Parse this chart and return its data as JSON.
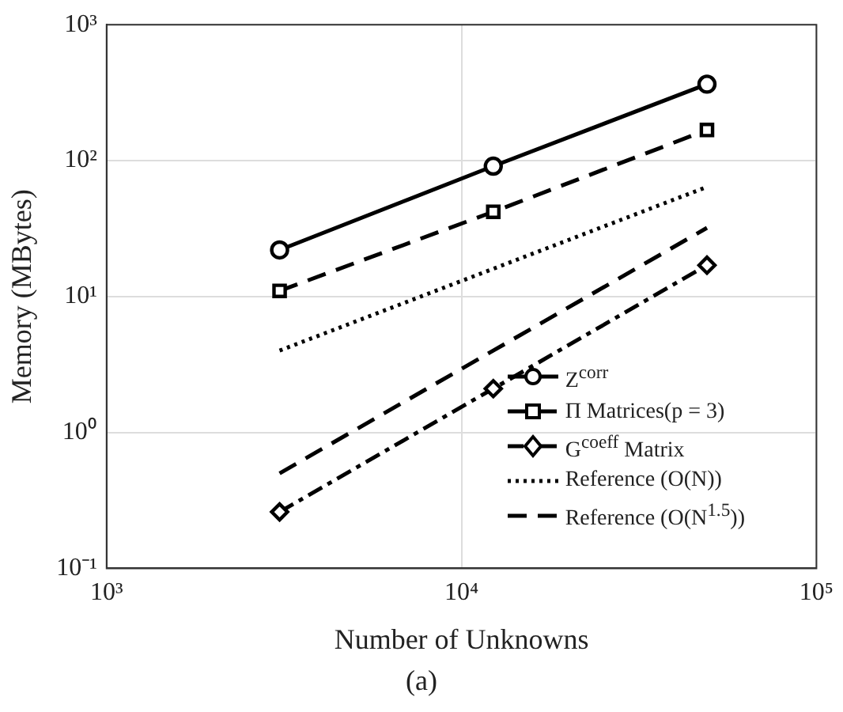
{
  "chart_data": {
    "type": "line",
    "xlabel": "Number of Unknowns",
    "ylabel": "Memory (MBytes)",
    "annotations": [
      "(a)"
    ],
    "x": [
      3072,
      12288,
      49152
    ],
    "series": [
      {
        "name": "Z$^{corr}$",
        "color": "#000000",
        "values": [
          22,
          91,
          365
        ],
        "marker": "circle",
        "line_style": "solid"
      },
      {
        "name": "Π Matrices(p = 3)",
        "color": "#000000",
        "values": [
          11,
          42,
          168
        ],
        "marker": "square",
        "line_style": "dashed"
      },
      {
        "name": "G$^{coeff}$ Matrix",
        "color": "#000000",
        "values": [
          0.26,
          2.1,
          17
        ],
        "marker": "diamond",
        "line_style": "dashdot"
      },
      {
        "name": "Reference (O(N))",
        "color": "#000000",
        "values": [
          4,
          16,
          64
        ],
        "marker": "none",
        "line_style": "dotted"
      },
      {
        "name": "Reference (O(N$^{1.5}$))",
        "color": "#000000",
        "values": [
          0.5,
          4,
          32
        ],
        "marker": "none",
        "line_style": "dashed"
      }
    ],
    "log": "xy",
    "xlim": [
      1000,
      100000
    ],
    "ylim": [
      0.1,
      1000
    ],
    "xticks": [
      {
        "value": 1000,
        "label": "10³"
      },
      {
        "value": 10000,
        "label": "10⁴"
      },
      {
        "value": 100000,
        "label": "10⁵"
      }
    ],
    "yticks": [
      {
        "value": 0.1,
        "label": "10⁻¹"
      },
      {
        "value": 1,
        "label": "10⁰"
      },
      {
        "value": 10,
        "label": "10¹"
      },
      {
        "value": 100,
        "label": "10²"
      },
      {
        "value": 1000,
        "label": "10³"
      }
    ],
    "grid": true,
    "legend": "bottom right"
  }
}
